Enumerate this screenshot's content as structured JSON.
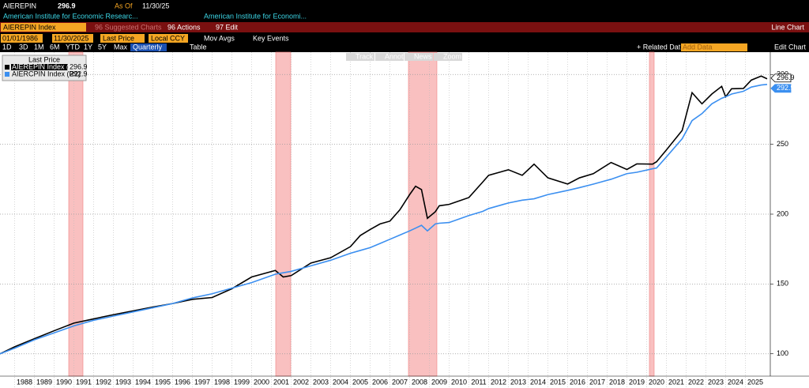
{
  "header": {
    "ticker": "AIEREPIN",
    "as_of_label": "As Of",
    "as_of": "11/30/25",
    "desc1": "American Institute for Economic Researc...",
    "desc2": "American Institute for Economi..."
  },
  "toolbar": {
    "security": "AIEREPIN Index",
    "suggested": "96 Suggested Charts",
    "actions": "96 Actions",
    "edit": "97 Edit",
    "view": "Line Chart",
    "start": "01/01/1986",
    "end": "11/30/2025",
    "field": "Last Price",
    "currency": "Local CCY",
    "mov_avgs": "Mov Avgs",
    "key_events": "Key Events",
    "periods": [
      "1D",
      "3D",
      "1M",
      "6M",
      "YTD",
      "1Y",
      "5Y",
      "Max"
    ],
    "frequency": "Quarterly",
    "table": "Table",
    "related": "+ Related Dat",
    "add_data": "Add Data",
    "edit_chart": "Edit Chart",
    "tools": [
      "Track",
      "Annotate",
      "News",
      "Zoom"
    ]
  },
  "chart_data": {
    "type": "line",
    "legend_title": "Last Price",
    "x": [
      1987.26,
      1988,
      1989,
      1990,
      1991,
      1992,
      1993,
      1994,
      1995,
      1996,
      1997,
      1998,
      1999,
      2000,
      2001.2,
      2001.6,
      2002,
      2003,
      2004,
      2005,
      2005.5,
      2006,
      2006.5,
      2007,
      2007.5,
      2008,
      2008.3,
      2008.6,
      2008.9,
      2009.3,
      2009.5,
      2010,
      2011,
      2011.7,
      2012,
      2013,
      2013.7,
      2014.3,
      2015,
      2016,
      2016.6,
      2017.3,
      2018.2,
      2019,
      2019.5,
      2020.3,
      2020.5,
      2021,
      2021.8,
      2022.3,
      2022.8,
      2023.3,
      2023.8,
      2024,
      2024.3,
      2024.9,
      2025.3,
      2025.8,
      2026.1
    ],
    "series": [
      {
        "name": "AIEREPIN Index (R1)",
        "color": "#000000",
        "values": [
          100,
          105,
          110.8,
          116.5,
          122,
          125,
          128,
          130.7,
          133.5,
          136,
          139,
          140.3,
          146.6,
          155,
          159.7,
          155,
          156,
          165,
          168.8,
          176.7,
          184.7,
          189,
          193,
          195,
          203,
          214,
          220,
          217.6,
          197,
          201.7,
          206,
          207,
          211.9,
          223,
          227.8,
          231.8,
          227.8,
          235.8,
          226,
          221.6,
          226,
          229,
          237,
          232,
          236,
          235.8,
          237.5,
          246,
          260,
          287,
          279,
          286,
          291.5,
          284,
          289.8,
          290,
          296,
          298.9,
          296.9
        ]
      },
      {
        "name": "AIERCPIN Index (R2)",
        "color": "#3b8ff0",
        "values": [
          100,
          104,
          110,
          115,
          120,
          124,
          127,
          130,
          133,
          136,
          140,
          143,
          147,
          151,
          157,
          158,
          159,
          163,
          167,
          172,
          174,
          176,
          179,
          182,
          185,
          188,
          190,
          192,
          188,
          193,
          193.5,
          194,
          199,
          202,
          204,
          208,
          210,
          211,
          214,
          217,
          219,
          221.5,
          225,
          229,
          230,
          232.5,
          233,
          241,
          254,
          267,
          272,
          279,
          283,
          284,
          286,
          288,
          291,
          292.5,
          292.9
        ]
      }
    ],
    "shaded_ranges": [
      [
        1990.74,
        1991.46
      ],
      [
        2001.22,
        2001.98
      ],
      [
        2007.94,
        2009.38
      ],
      [
        2020.14,
        2020.38
      ]
    ],
    "shade_color": "#f9c0c0",
    "xlim": [
      1987.26,
      2026.26
    ],
    "xticks": [
      1988,
      1989,
      1990,
      1991,
      1992,
      1993,
      1994,
      1995,
      1996,
      1997,
      1998,
      1999,
      2000,
      2001,
      2002,
      2003,
      2004,
      2005,
      2006,
      2007,
      2008,
      2009,
      2010,
      2011,
      2012,
      2013,
      2014,
      2015,
      2016,
      2017,
      2018,
      2019,
      2020,
      2021,
      2022,
      2023,
      2024,
      2025
    ],
    "ylim": [
      84,
      316
    ],
    "yticks": [
      100,
      150,
      200,
      250,
      300
    ],
    "grid": true
  }
}
